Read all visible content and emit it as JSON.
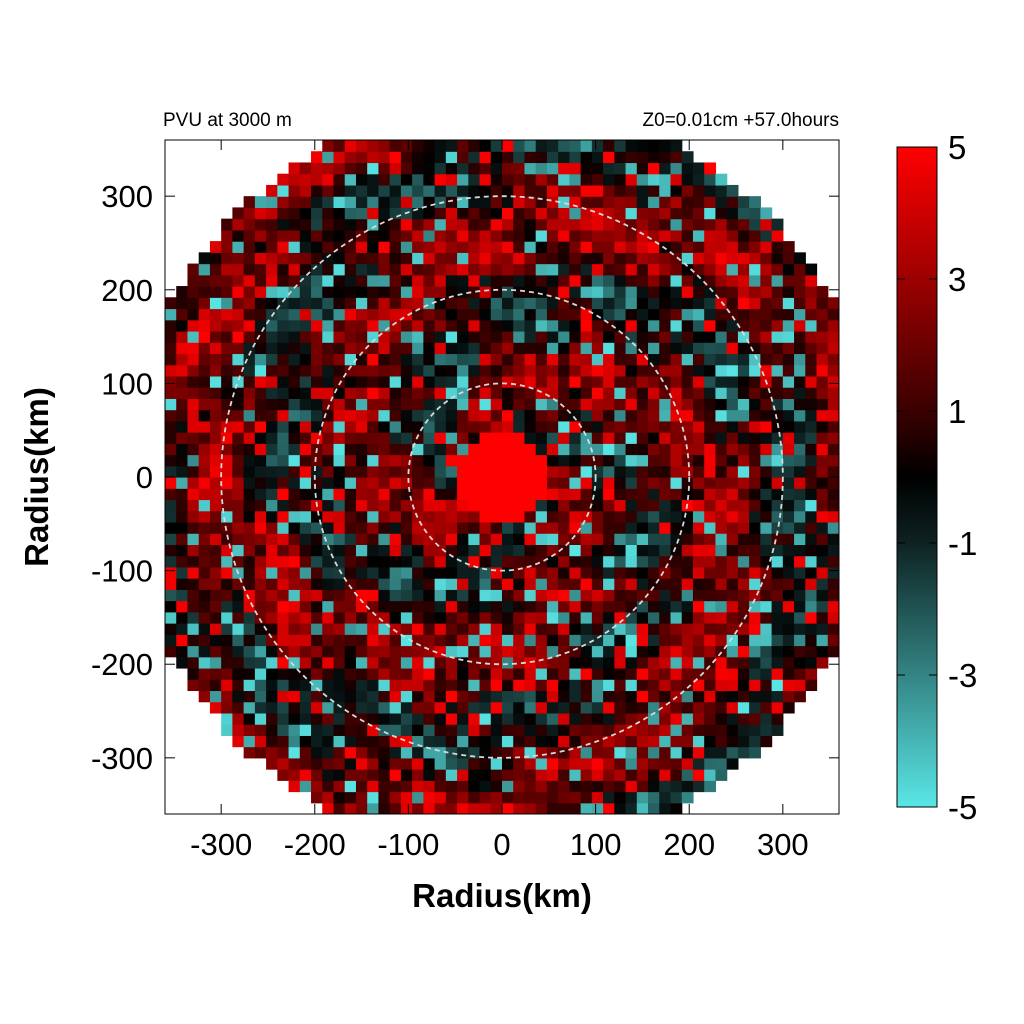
{
  "chart_data": {
    "type": "heatmap",
    "title_left": "PVU at  3000 m",
    "title_right": "Z0=0.01cm  +57.0hours",
    "xlabel": "Radius(km)",
    "ylabel": "Radius(km)",
    "xlim": [
      -360,
      360
    ],
    "ylim": [
      -360,
      360
    ],
    "xticks": [
      -300,
      -200,
      -100,
      0,
      100,
      200,
      300
    ],
    "yticks": [
      300,
      200,
      100,
      0,
      -100,
      -200,
      -300
    ],
    "domain_radius_km": 400,
    "reference_circles_km": [
      100,
      200,
      300
    ],
    "colorbar": {
      "min": -5,
      "max": 5,
      "ticks": [
        5,
        3,
        1,
        -1,
        -3,
        -5
      ],
      "color_stops": [
        {
          "value": 5,
          "color": "#ff0000"
        },
        {
          "value": 1,
          "color": "#3a0000"
        },
        {
          "value": 0,
          "color": "#000000"
        },
        {
          "value": -1,
          "color": "#0e2222"
        },
        {
          "value": -5,
          "color": "#5ae6e6"
        }
      ]
    },
    "features": {
      "core_radius_km": 50,
      "core_value": 5,
      "background_value": 1.4
    }
  }
}
